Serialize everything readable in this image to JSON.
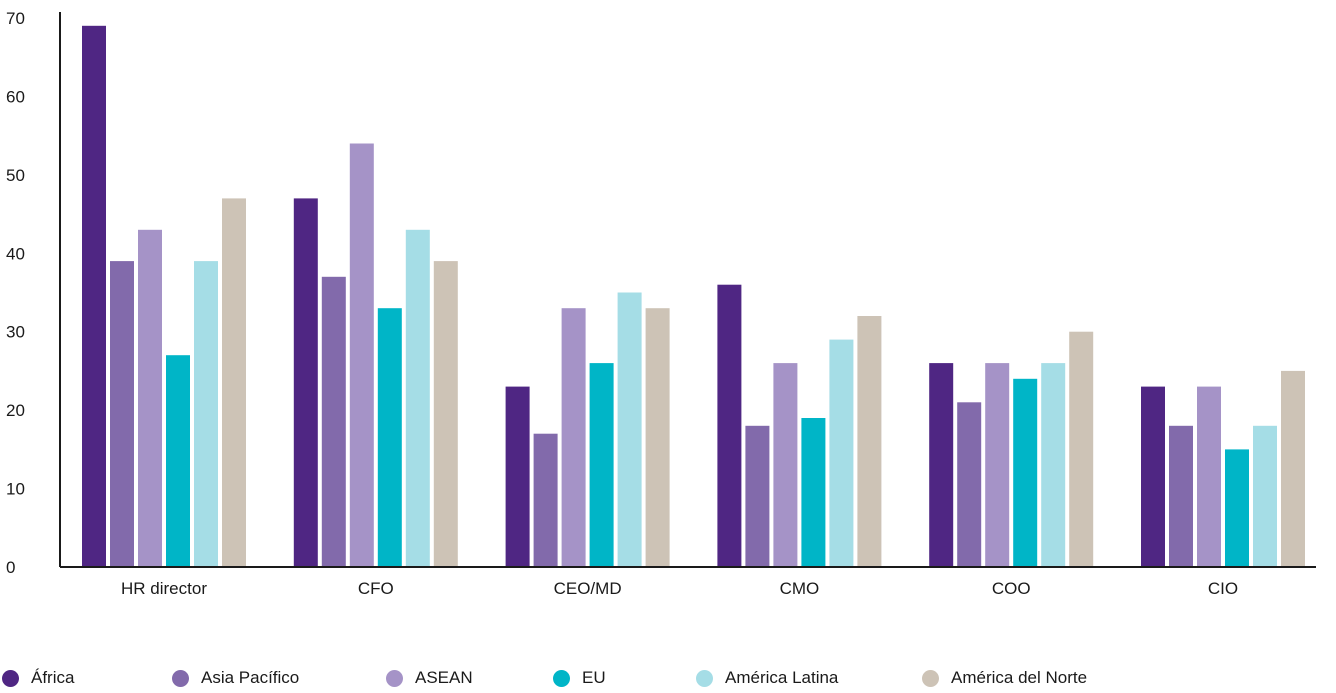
{
  "chart_data": {
    "type": "bar",
    "categories": [
      "HR director",
      "CFO",
      "CEO/MD",
      "CMO",
      "COO",
      "CIO"
    ],
    "series": [
      {
        "name": "África",
        "color": "#4f2683",
        "values": [
          69,
          47,
          23,
          36,
          26,
          23
        ]
      },
      {
        "name": "Asia Pacífico",
        "color": "#826aab",
        "values": [
          39,
          37,
          17,
          18,
          21,
          18
        ]
      },
      {
        "name": "ASEAN",
        "color": "#a593c7",
        "values": [
          43,
          54,
          33,
          26,
          26,
          23
        ]
      },
      {
        "name": "EU",
        "color": "#00b5c7",
        "values": [
          27,
          33,
          26,
          19,
          24,
          15
        ]
      },
      {
        "name": "América Latina",
        "color": "#a5dde6",
        "values": [
          39,
          43,
          35,
          29,
          26,
          18
        ]
      },
      {
        "name": "América del Norte",
        "color": "#cdc3b6",
        "values": [
          47,
          39,
          33,
          32,
          30,
          25
        ]
      }
    ],
    "ylim": [
      0,
      70
    ],
    "yticks": [
      0,
      10,
      20,
      30,
      40,
      50,
      60,
      70
    ],
    "grid": false,
    "legend_position": "bottom"
  }
}
